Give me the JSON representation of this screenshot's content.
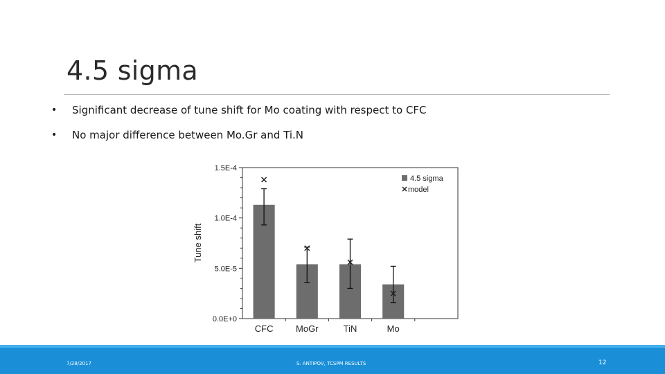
{
  "slide": {
    "title": "4.5 sigma",
    "bullets": [
      "Significant decrease of tune shift for Mo coating with respect to CFC",
      "No major difference between Mo.Gr and Ti.N"
    ],
    "bullet_symbol": "•"
  },
  "footer": {
    "date": "7/28/2017",
    "center": "S. ANTIPOV, TCSPM RESULTS",
    "page": "12",
    "bar_color": "#1a8fd8"
  },
  "chart_data": {
    "type": "bar",
    "categories": [
      "CFC",
      "MoGr",
      "TiN",
      "Mo"
    ],
    "series": [
      {
        "name": "4.5 sigma",
        "values": [
          0.000113,
          5.4e-05,
          5.4e-05,
          3.4e-05
        ],
        "error_low": [
          9.3e-05,
          3.6e-05,
          3e-05,
          1.6e-05
        ],
        "error_high": [
          0.000129,
          7.1e-05,
          7.9e-05,
          5.2e-05
        ],
        "color": "#6d6d6d"
      },
      {
        "name": "model",
        "marker": "x",
        "values": [
          0.000138,
          7e-05,
          5.6e-05,
          2.5e-05
        ],
        "color": "#222222"
      }
    ],
    "title": "",
    "xlabel": "",
    "ylabel": "Tune shift",
    "ylim": [
      0,
      0.00015
    ],
    "yticks": [
      0,
      5e-05,
      0.0001,
      0.00015
    ],
    "ytick_labels": [
      "0.0E+0",
      "5.0E-5",
      "1.0E-4",
      "1.5E-4"
    ],
    "legend_position": "top-right",
    "grid": false
  }
}
